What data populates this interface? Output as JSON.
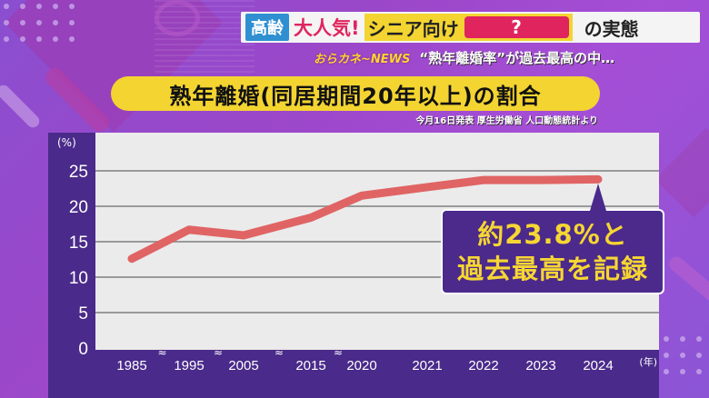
{
  "banner": {
    "tag": "高齢",
    "headline_red": "大人気!",
    "headline_yellow": "シニア向け",
    "hidden_word": "?",
    "headline_tail": "の実態"
  },
  "subline": {
    "program": "おらカネ~NEWS",
    "text": "“熟年離婚率”が過去最高の中…"
  },
  "chart_header": {
    "title": "熟年離婚(同居期間20年以上)の割合",
    "source": "今月16日発表 厚生労働省 人口動態統計より"
  },
  "callout": {
    "line1": "約23.8%と",
    "line2": "過去最高を記録"
  },
  "colors": {
    "line": "#e06464",
    "frame": "#4a2a8a",
    "title_bg": "#f3d431",
    "callout_text": "#f6d632",
    "accent_red": "#e0245e",
    "tag_blue": "#2f8fd1"
  },
  "chart_data": {
    "type": "line",
    "title": "熟年離婚(同居期間20年以上)の割合",
    "subtitle": "今月16日発表 厚生労働省 人口動態統計より",
    "xlabel": "(年)",
    "ylabel": "(%)",
    "categories": [
      "1985",
      "1995",
      "2005",
      "2015",
      "2020",
      "2021",
      "2022",
      "2023",
      "2024"
    ],
    "axis_breaks_after": [
      "1985",
      "1995",
      "2005",
      "2015"
    ],
    "series": [
      {
        "name": "熟年離婚の割合",
        "values": [
          12.6,
          16.7,
          15.9,
          18.4,
          21.5,
          22.7,
          23.7,
          23.7,
          23.8
        ]
      }
    ],
    "yticks": [
      0,
      5,
      10,
      15,
      20,
      25
    ],
    "ylim": [
      0,
      30
    ],
    "grid": true,
    "annotation": "約23.8%と過去最高を記録"
  }
}
